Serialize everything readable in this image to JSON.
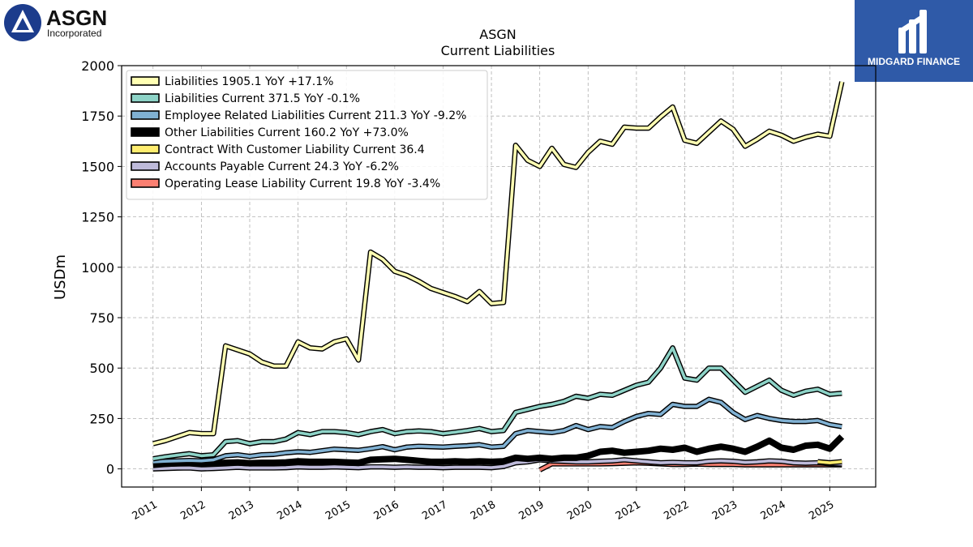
{
  "brand": {
    "company_logo_text": "ASGN",
    "company_logo_sub": "Incorporated",
    "publisher_logo_text": "MIDGARD FINANCE"
  },
  "chart_data": {
    "type": "line",
    "title": "ASGN",
    "subtitle": "Current  Liabilities",
    "ylabel": "USDm",
    "xlabel": "",
    "ylim": [
      -90,
      2000
    ],
    "xlim": [
      2010.35,
      2025.95
    ],
    "yticks": [
      0,
      250,
      500,
      750,
      1000,
      1250,
      1500,
      1750,
      2000
    ],
    "xticks": [
      "2011",
      "2012",
      "2013",
      "2014",
      "2015",
      "2016",
      "2017",
      "2018",
      "2019",
      "2020",
      "2021",
      "2022",
      "2023",
      "2024",
      "2025"
    ],
    "grid": true,
    "legend_position": "top-left",
    "series": [
      {
        "name": "Liabilities",
        "legend": "Liabilities  1905.1 YoY +17.1%",
        "color": "#ffffb3",
        "x": [
          2011.0,
          2011.25,
          2011.5,
          2011.75,
          2012.0,
          2012.25,
          2012.5,
          2012.75,
          2013.0,
          2013.25,
          2013.5,
          2013.75,
          2014.0,
          2014.25,
          2014.5,
          2014.75,
          2015.0,
          2015.25,
          2015.5,
          2015.75,
          2016.0,
          2016.25,
          2016.5,
          2016.75,
          2017.0,
          2017.25,
          2017.5,
          2017.75,
          2018.0,
          2018.25,
          2018.5,
          2018.75,
          2019.0,
          2019.25,
          2019.5,
          2019.75,
          2020.0,
          2020.25,
          2020.5,
          2020.75,
          2021.0,
          2021.25,
          2021.5,
          2021.75,
          2022.0,
          2022.25,
          2022.5,
          2022.75,
          2023.0,
          2023.25,
          2023.5,
          2023.75,
          2024.0,
          2024.25,
          2024.5,
          2024.75,
          2025.0,
          2025.25
        ],
        "values": [
          125,
          140,
          160,
          180,
          175,
          175,
          610,
          590,
          570,
          530,
          510,
          510,
          630,
          600,
          595,
          630,
          645,
          540,
          1075,
          1040,
          980,
          960,
          930,
          895,
          875,
          855,
          830,
          880,
          820,
          825,
          1605,
          1530,
          1500,
          1590,
          1510,
          1495,
          1570,
          1625,
          1610,
          1695,
          1690,
          1690,
          1745,
          1795,
          1630,
          1615,
          1670,
          1725,
          1685,
          1600,
          1635,
          1675,
          1655,
          1625,
          1645,
          1660,
          1650,
          1920
        ]
      },
      {
        "name": "Liabilities Current",
        "legend": "Liabilities Current  371.5 YoY -0.1%",
        "color": "#8dd3c7",
        "x": [
          2011.0,
          2011.25,
          2011.5,
          2011.75,
          2012.0,
          2012.25,
          2012.5,
          2012.75,
          2013.0,
          2013.25,
          2013.5,
          2013.75,
          2014.0,
          2014.25,
          2014.5,
          2014.75,
          2015.0,
          2015.25,
          2015.5,
          2015.75,
          2016.0,
          2016.25,
          2016.5,
          2016.75,
          2017.0,
          2017.25,
          2017.5,
          2017.75,
          2018.0,
          2018.25,
          2018.5,
          2018.75,
          2019.0,
          2019.25,
          2019.5,
          2019.75,
          2020.0,
          2020.25,
          2020.5,
          2020.75,
          2021.0,
          2021.25,
          2021.5,
          2021.75,
          2022.0,
          2022.25,
          2022.5,
          2022.75,
          2023.0,
          2023.25,
          2023.5,
          2023.75,
          2024.0,
          2024.25,
          2024.5,
          2024.75,
          2025.0,
          2025.25
        ],
        "values": [
          50,
          60,
          68,
          75,
          65,
          70,
          135,
          140,
          125,
          135,
          135,
          148,
          180,
          170,
          185,
          185,
          180,
          170,
          185,
          195,
          175,
          185,
          188,
          185,
          175,
          182,
          190,
          200,
          185,
          190,
          280,
          295,
          310,
          320,
          335,
          360,
          350,
          370,
          365,
          390,
          415,
          430,
          500,
          600,
          450,
          440,
          500,
          500,
          440,
          380,
          410,
          440,
          390,
          365,
          385,
          395,
          370,
          375
        ]
      },
      {
        "name": "Employee Related Liabilities Current",
        "legend": "Employee Related Liabilities Current  211.3 YoY -9.2%",
        "color": "#80b1d3",
        "x": [
          2011.0,
          2011.25,
          2011.5,
          2011.75,
          2012.0,
          2012.25,
          2012.5,
          2012.75,
          2013.0,
          2013.25,
          2013.5,
          2013.75,
          2014.0,
          2014.25,
          2014.5,
          2014.75,
          2015.0,
          2015.25,
          2015.5,
          2015.75,
          2016.0,
          2016.25,
          2016.5,
          2016.75,
          2017.0,
          2017.25,
          2017.5,
          2017.75,
          2018.0,
          2018.25,
          2018.5,
          2018.75,
          2019.0,
          2019.25,
          2019.5,
          2019.75,
          2020.0,
          2020.25,
          2020.5,
          2020.75,
          2021.0,
          2021.25,
          2021.5,
          2021.75,
          2022.0,
          2022.25,
          2022.5,
          2022.75,
          2023.0,
          2023.25,
          2023.5,
          2023.75,
          2024.0,
          2024.25,
          2024.5,
          2024.75,
          2025.0,
          2025.25
        ],
        "values": [
          35,
          38,
          40,
          42,
          40,
          45,
          65,
          70,
          62,
          70,
          72,
          80,
          85,
          82,
          90,
          98,
          95,
          92,
          100,
          110,
          95,
          108,
          112,
          110,
          108,
          112,
          115,
          120,
          108,
          112,
          175,
          190,
          185,
          180,
          190,
          215,
          195,
          210,
          205,
          235,
          260,
          275,
          270,
          320,
          310,
          310,
          345,
          330,
          280,
          245,
          265,
          250,
          240,
          235,
          235,
          240,
          220,
          210
        ]
      },
      {
        "name": "Other Liabilities Current",
        "legend": "Other Liabilities Current  160.2 YoY +73.0%",
        "color": "#000000",
        "x": [
          2011.0,
          2011.25,
          2011.5,
          2011.75,
          2012.0,
          2012.25,
          2012.5,
          2012.75,
          2013.0,
          2013.25,
          2013.5,
          2013.75,
          2014.0,
          2014.25,
          2014.5,
          2014.75,
          2015.0,
          2015.25,
          2015.5,
          2015.75,
          2016.0,
          2016.25,
          2016.5,
          2016.75,
          2017.0,
          2017.25,
          2017.5,
          2017.75,
          2018.0,
          2018.25,
          2018.5,
          2018.75,
          2019.0,
          2019.25,
          2019.5,
          2019.75,
          2020.0,
          2020.25,
          2020.5,
          2020.75,
          2021.0,
          2021.25,
          2021.5,
          2021.75,
          2022.0,
          2022.25,
          2022.5,
          2022.75,
          2023.0,
          2023.25,
          2023.5,
          2023.75,
          2024.0,
          2024.25,
          2024.5,
          2024.75,
          2025.0,
          2025.25
        ],
        "values": [
          20,
          25,
          28,
          30,
          25,
          28,
          30,
          32,
          28,
          30,
          30,
          32,
          38,
          35,
          35,
          35,
          32,
          30,
          45,
          48,
          50,
          45,
          40,
          35,
          35,
          38,
          35,
          38,
          35,
          38,
          55,
          50,
          55,
          50,
          55,
          55,
          65,
          85,
          90,
          80,
          85,
          90,
          100,
          95,
          105,
          85,
          100,
          110,
          100,
          85,
          110,
          140,
          105,
          95,
          115,
          120,
          100,
          160
        ]
      },
      {
        "name": "Contract With Customer Liability Current",
        "legend": "Contract With Customer Liability Current  36.4",
        "color": "#ffed6f",
        "x": [
          2024.75,
          2025.0,
          2025.25
        ],
        "values": [
          36,
          30,
          36
        ]
      },
      {
        "name": "Accounts Payable Current",
        "legend": "Accounts Payable Current  24.3 YoY -6.2%",
        "color": "#bebada",
        "x": [
          2011.0,
          2011.25,
          2011.5,
          2011.75,
          2012.0,
          2012.25,
          2012.5,
          2012.75,
          2013.0,
          2013.25,
          2013.5,
          2013.75,
          2014.0,
          2014.25,
          2014.5,
          2014.75,
          2015.0,
          2015.25,
          2015.5,
          2015.75,
          2016.0,
          2016.25,
          2016.5,
          2016.75,
          2017.0,
          2017.25,
          2017.5,
          2017.75,
          2018.0,
          2018.25,
          2018.5,
          2018.75,
          2019.0,
          2019.25,
          2019.5,
          2019.75,
          2020.0,
          2020.25,
          2020.5,
          2020.75,
          2021.0,
          2021.25,
          2021.5,
          2021.75,
          2022.0,
          2022.25,
          2022.5,
          2022.75,
          2023.0,
          2023.25,
          2023.5,
          2023.75,
          2024.0,
          2024.25,
          2024.5,
          2024.75,
          2025.0,
          2025.25
        ],
        "values": [
          0,
          2,
          4,
          5,
          0,
          2,
          5,
          8,
          5,
          5,
          5,
          6,
          10,
          8,
          8,
          10,
          8,
          6,
          10,
          10,
          8,
          10,
          8,
          8,
          6,
          8,
          8,
          8,
          6,
          12,
          30,
          35,
          45,
          40,
          38,
          35,
          35,
          38,
          40,
          45,
          40,
          35,
          30,
          32,
          30,
          30,
          38,
          40,
          38,
          32,
          35,
          40,
          38,
          30,
          28,
          30,
          26,
          24
        ]
      },
      {
        "name": "Operating Lease Liability Current",
        "legend": "Operating Lease Liability Current  19.8 YoY -3.4%",
        "color": "#fb8072",
        "x": [
          2019.0,
          2019.25,
          2019.5,
          2019.75,
          2020.0,
          2020.25,
          2020.5,
          2020.75,
          2021.0,
          2021.25,
          2021.5,
          2021.75,
          2022.0,
          2022.25,
          2022.5,
          2022.75,
          2023.0,
          2023.25,
          2023.5,
          2023.75,
          2024.0,
          2024.25,
          2024.5,
          2024.75,
          2025.0,
          2025.25
        ],
        "values": [
          -5,
          25,
          25,
          25,
          25,
          25,
          26,
          28,
          30,
          28,
          25,
          22,
          22,
          24,
          22,
          22,
          22,
          20,
          20,
          20,
          20,
          20,
          20,
          20,
          20,
          20
        ]
      }
    ]
  }
}
